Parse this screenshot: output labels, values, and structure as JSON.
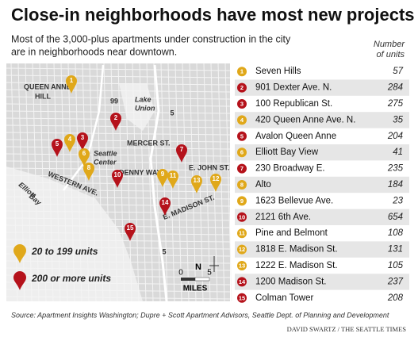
{
  "header": {
    "title": "Close-in neighborhoods have most new projects",
    "subtitle": [
      "Most of the 3,000-plus apartments under construction in the city",
      "are in neighborhoods near downtown."
    ],
    "column_header": [
      "Number",
      "of units"
    ]
  },
  "table": {
    "rows": [
      {
        "number": 1,
        "name": "Seven Hills",
        "units": 57,
        "color": "#e0a81a"
      },
      {
        "number": 2,
        "name": "901 Dexter Ave. N.",
        "units": 284,
        "color": "#b5121b"
      },
      {
        "number": 3,
        "name": "100 Republican St.",
        "units": 275,
        "color": "#b5121b"
      },
      {
        "number": 4,
        "name": "420 Queen Anne Ave. N.",
        "units": 35,
        "color": "#e0a81a"
      },
      {
        "number": 5,
        "name": "Avalon Queen Anne",
        "units": 204,
        "color": "#b5121b"
      },
      {
        "number": 6,
        "name": "Elliott Bay View",
        "units": 41,
        "color": "#e0a81a"
      },
      {
        "number": 7,
        "name": "230 Broadway E.",
        "units": 235,
        "color": "#b5121b"
      },
      {
        "number": 8,
        "name": "Alto",
        "units": 184,
        "color": "#e0a81a"
      },
      {
        "number": 9,
        "name": "1623 Bellevue Ave.",
        "units": 23,
        "color": "#e0a81a"
      },
      {
        "number": 10,
        "name": "2121 6th Ave.",
        "units": 654,
        "color": "#b5121b"
      },
      {
        "number": 11,
        "name": "Pine and Belmont",
        "units": 108,
        "color": "#e0a81a"
      },
      {
        "number": 12,
        "name": "1818 E. Madison St.",
        "units": 131,
        "color": "#e0a81a"
      },
      {
        "number": 13,
        "name": "1222 E. Madison St.",
        "units": 105,
        "color": "#e0a81a"
      },
      {
        "number": 14,
        "name": "1200 Madison St.",
        "units": 237,
        "color": "#b5121b"
      },
      {
        "number": 15,
        "name": "Colman Tower",
        "units": 208,
        "color": "#b5121b"
      }
    ]
  },
  "legend": [
    {
      "label": "20 to 199 units",
      "color": "#e0a81a"
    },
    {
      "label": "200 or more units",
      "color": "#b5121b"
    }
  ],
  "map": {
    "labels": [
      "QUEEN ANNE",
      "HILL",
      "Lake",
      "Union",
      "MERCER ST.",
      "Seattle",
      "Center",
      "DENNY WAY",
      "WESTERN AVE.",
      "Elliott",
      "Bay",
      "E. JOHN ST.",
      "E. MADISON ST.",
      "99",
      "5",
      "5"
    ],
    "scale": {
      "north": "N",
      "start": "0",
      "end": "5",
      "unit": "MILES"
    }
  },
  "footer": {
    "source": "Source: Apartment Insights Washington; Dupre + Scott Apartment Advisors, Seattle Dept. of Planning and Development",
    "credit": "DAVID SWARTZ / THE SEATTLE TIMES"
  }
}
